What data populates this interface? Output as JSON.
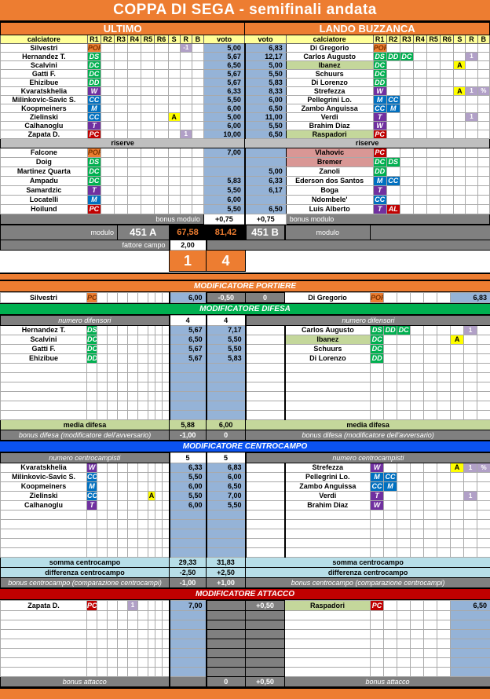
{
  "title": "COPPA DI SEGA - semifinali andata",
  "teams": {
    "left": "ULTIMO",
    "right": "LANDO BUZZANCA"
  },
  "columns": {
    "player": "calciatore",
    "roles": [
      "R1",
      "R2",
      "R3",
      "R4",
      "R5",
      "R6"
    ],
    "s": "S",
    "r": "R",
    "b": "B",
    "voto": "voto"
  },
  "colors": {
    "accent_orange": "#ED7D31",
    "header_yellow": "#FFFF99",
    "voto_blue": "#95B3D7",
    "role_green": "#00B050",
    "role_blue": "#0070C0",
    "role_purple": "#7030A0",
    "role_red": "#C00000",
    "badge_lavender": "#B1A0C7",
    "badge_yellow": "#FFFF00",
    "gray_label": "#808080",
    "riserve_gray": "#BFBFBF",
    "sage_green": "#C4D79B",
    "rose_red": "#D99795",
    "light_blue": "#B7DEE8",
    "section_blue": "#0B52F0",
    "section_green": "#00B050",
    "section_red": "#C00000"
  },
  "starters": {
    "left": [
      {
        "name": "Silvestri",
        "roles": [
          "POR"
        ],
        "r": "-1",
        "voto": "5,00"
      },
      {
        "name": "Hernandez T.",
        "roles": [
          "DS"
        ],
        "voto": "5,67"
      },
      {
        "name": "Scalvini",
        "roles": [
          "DC"
        ],
        "voto": "6,50"
      },
      {
        "name": "Gatti F.",
        "roles": [
          "DC"
        ],
        "voto": "5,67"
      },
      {
        "name": "Ehizibue",
        "roles": [
          "DD"
        ],
        "voto": "5,67"
      },
      {
        "name": "Kvaratskhelia",
        "roles": [
          "W"
        ],
        "voto": "6,33"
      },
      {
        "name": "Milinkovic-Savic S.",
        "roles": [
          "CC"
        ],
        "voto": "5,50"
      },
      {
        "name": "Koopmeiners",
        "roles": [
          "M"
        ],
        "voto": "6,00"
      },
      {
        "name": "Zielinski",
        "roles": [
          "CC"
        ],
        "s": "A",
        "voto": "5,00"
      },
      {
        "name": "Calhanoglu",
        "roles": [
          "T"
        ],
        "voto": "6,00"
      },
      {
        "name": "Zapata D.",
        "roles": [
          "PC"
        ],
        "r": "1",
        "voto": "10,00"
      }
    ],
    "right": [
      {
        "name": "Di Gregorio",
        "roles": [
          "POR"
        ],
        "voto": "6,83"
      },
      {
        "name": "Carlos Augusto",
        "roles": [
          "DS",
          "DD",
          "DC"
        ],
        "r": "1",
        "voto": "12,17"
      },
      {
        "name": "Ibanez",
        "roles": [
          "DC"
        ],
        "s": "A",
        "voto": "5,00",
        "hl": "sage"
      },
      {
        "name": "Schuurs",
        "roles": [
          "DC"
        ],
        "voto": "5,50"
      },
      {
        "name": "Di Lorenzo",
        "roles": [
          "DD"
        ],
        "voto": "5,83"
      },
      {
        "name": "Strefezza",
        "roles": [
          "W"
        ],
        "s": "A",
        "r": "1",
        "b": "%",
        "voto": "8,33"
      },
      {
        "name": "Pellegrini Lo.",
        "roles": [
          "M",
          "CC"
        ],
        "voto": "6,00"
      },
      {
        "name": "Zambo Anguissa",
        "roles": [
          "CC",
          "M"
        ],
        "voto": "6,50"
      },
      {
        "name": "Verdi",
        "roles": [
          "T"
        ],
        "r": "1",
        "voto": "11,00"
      },
      {
        "name": "Brahim Diaz",
        "roles": [
          "W"
        ],
        "voto": "5,50"
      },
      {
        "name": "Raspadori",
        "roles": [
          "PC"
        ],
        "voto": "6,50",
        "hl": "sage"
      }
    ]
  },
  "labels": {
    "riserve": "riserve"
  },
  "reserves": {
    "left": [
      {
        "name": "Falcone",
        "roles": [
          "POR"
        ],
        "voto": "7,00"
      },
      {
        "name": "Doig",
        "roles": [
          "DS"
        ],
        "voto": ""
      },
      {
        "name": "Martinez Quarta",
        "roles": [
          "DC"
        ],
        "voto": ""
      },
      {
        "name": "Ampadu",
        "roles": [
          "DC"
        ],
        "voto": "5,83"
      },
      {
        "name": "Samardzic",
        "roles": [
          "T"
        ],
        "voto": "5,50"
      },
      {
        "name": "Locatelli",
        "roles": [
          "M"
        ],
        "voto": "6,00"
      },
      {
        "name": "Hoilund",
        "roles": [
          "PC"
        ],
        "voto": "5,50"
      }
    ],
    "right": [
      {
        "name": "Vlahovic",
        "roles": [
          "PC"
        ],
        "voto": "",
        "hl": "rose"
      },
      {
        "name": "Bremer",
        "roles": [
          "DC",
          "DS"
        ],
        "voto": "",
        "hl": "rose"
      },
      {
        "name": "Zanoli",
        "roles": [
          "DD"
        ],
        "voto": "5,00"
      },
      {
        "name": "Ederson dos Santos",
        "roles": [
          "M",
          "CC"
        ],
        "voto": "6,33"
      },
      {
        "name": "Boga",
        "roles": [
          "T"
        ],
        "voto": "6,17"
      },
      {
        "name": "Ndombele'",
        "roles": [
          "CC"
        ],
        "voto": ""
      },
      {
        "name": "Luis Alberto",
        "roles": [
          "T",
          "AL"
        ],
        "voto": "6,50"
      }
    ]
  },
  "modulo": {
    "bonus_label": "bonus modulo",
    "bonus_left": "+0,75",
    "bonus_right": "+0,75",
    "modulo_label": "modulo",
    "left_module": "451 A",
    "right_module": "451 B",
    "left_total": "67,58",
    "right_total": "81,42",
    "fattore_label": "fattore campo",
    "fattore_value": "2,00",
    "score_left": "1",
    "score_right": "4"
  },
  "portiere": {
    "header": "MODIFICATORE PORTIERE",
    "left": {
      "name": "Silvestri",
      "roles": [
        "POR"
      ],
      "voto": "6,00"
    },
    "bonus_left": "-0,50",
    "bonus_right": "0",
    "right": {
      "name": "Di Gregorio",
      "roles": [
        "POR"
      ],
      "voto": "6,83"
    }
  },
  "difesa": {
    "header": "MODIFICATORE DIFESA",
    "numero_label": "numero difensori",
    "numero_left": "4",
    "numero_right": "4",
    "rows": [
      {
        "left": {
          "name": "Hernandez T.",
          "roles": [
            "DS"
          ],
          "voto": "5,67"
        },
        "mid": "7,17",
        "right": {
          "name": "Carlos Augusto",
          "roles": [
            "DS",
            "DD",
            "DC"
          ],
          "r": "1"
        }
      },
      {
        "left": {
          "name": "Scalvini",
          "roles": [
            "DC"
          ],
          "voto": "6,50"
        },
        "mid": "5,50",
        "right": {
          "name": "Ibanez",
          "roles": [
            "DC"
          ],
          "s": "A",
          "hl": "sage"
        }
      },
      {
        "left": {
          "name": "Gatti F.",
          "roles": [
            "DC"
          ],
          "voto": "5,67"
        },
        "mid": "5,50",
        "right": {
          "name": "Schuurs",
          "roles": [
            "DC"
          ]
        }
      },
      {
        "left": {
          "name": "Ehizibue",
          "roles": [
            "DD"
          ],
          "voto": "5,67"
        },
        "mid": "5,83",
        "right": {
          "name": "Di Lorenzo",
          "roles": [
            "DD"
          ]
        }
      }
    ],
    "media_label": "media difesa",
    "media_left": "5,88",
    "media_right": "6,00",
    "bonus_label": "bonus difesa (modificatore dell'avversario)",
    "bonus_left": "-1,00",
    "bonus_right": "0"
  },
  "centrocampo": {
    "header": "MODIFICATORE CENTROCAMPO",
    "numero_label": "numero centrocampisti",
    "numero_left": "5",
    "numero_right": "5",
    "rows": [
      {
        "left": {
          "name": "Kvaratskhelia",
          "roles": [
            "W"
          ],
          "voto": "6,33"
        },
        "mid": "6,83",
        "right": {
          "name": "Strefezza",
          "roles": [
            "W"
          ],
          "s": "A",
          "r": "1",
          "b": "%"
        }
      },
      {
        "left": {
          "name": "Milinkovic-Savic S.",
          "roles": [
            "CC"
          ],
          "voto": "5,50"
        },
        "mid": "6,00",
        "right": {
          "name": "Pellegrini Lo.",
          "roles": [
            "M",
            "CC"
          ]
        }
      },
      {
        "left": {
          "name": "Koopmeiners",
          "roles": [
            "M"
          ],
          "voto": "6,00"
        },
        "mid": "6,50",
        "right": {
          "name": "Zambo Anguissa",
          "roles": [
            "CC",
            "M"
          ]
        }
      },
      {
        "left": {
          "name": "Zielinski",
          "roles": [
            "CC"
          ],
          "s": "A",
          "voto": "5,50"
        },
        "mid": "7,00",
        "right": {
          "name": "Verdi",
          "roles": [
            "T"
          ],
          "r": "1"
        }
      },
      {
        "left": {
          "name": "Calhanoglu",
          "roles": [
            "T"
          ],
          "voto": "6,00"
        },
        "mid": "5,50",
        "right": {
          "name": "Brahim Diaz",
          "roles": [
            "W"
          ]
        }
      }
    ],
    "somma_label": "somma centrocampo",
    "somma_left": "29,33",
    "somma_right": "31,83",
    "diff_label": "differenza centrocampo",
    "diff_left": "-2,50",
    "diff_right": "+2,50",
    "bonus_label": "bonus centrocampo (comparazione centrocampi)",
    "bonus_left": "-1,00",
    "bonus_right": "+1,00"
  },
  "attacco": {
    "header": "MODIFICATORE ATTACCO",
    "left": {
      "name": "Zapata D.",
      "roles": [
        "PC"
      ],
      "r": "1",
      "voto": "7,00"
    },
    "bonus_mid": "+0,50",
    "right": {
      "name": "Raspadori",
      "roles": [
        "PC"
      ],
      "voto": "6,50",
      "hl": "sage"
    },
    "bonus_label": "bonus attacco",
    "bonus_left": "0",
    "bonus_right": "+0,50"
  }
}
